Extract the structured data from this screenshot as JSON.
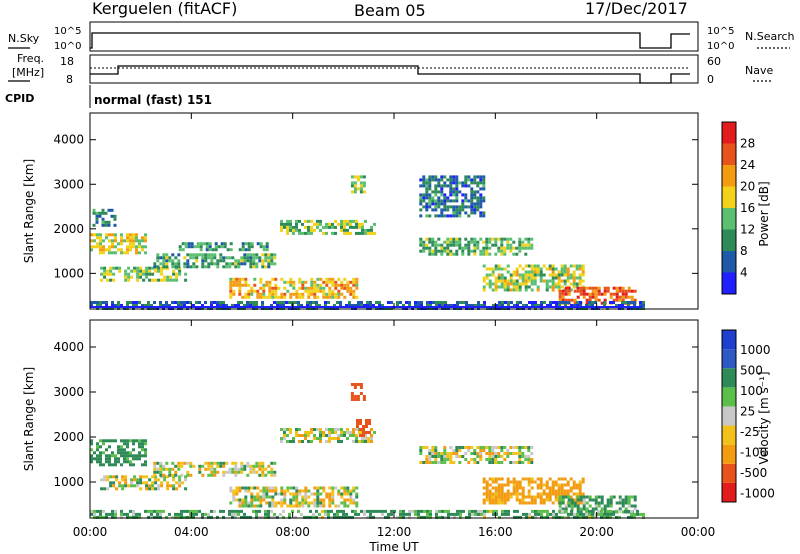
{
  "header": {
    "station": "Kerguelen (fitACF)",
    "beam": "Beam 05",
    "date": "17/Dec/2017"
  },
  "top_panels": {
    "nsky_label": "N.Sky",
    "nsky_ticks": [
      "10^5",
      "10^0"
    ],
    "nsearch_label": "N.Search",
    "nsearch_ticks": [
      "10^5",
      "10^0"
    ],
    "freq_label_1": "Freq.",
    "freq_label_2": "[MHz]",
    "freq_ticks": [
      "18",
      "8"
    ],
    "nave_label": "Nave",
    "nave_ticks": [
      "60",
      "0"
    ],
    "cpid_label": "CPID",
    "mode_text": "normal (fast) 151"
  },
  "colors": {
    "power_scale": [
      "#1f1fff",
      "#1e5aa8",
      "#2e8b57",
      "#5bbf72",
      "#f2d21b",
      "#f39c12",
      "#e8531c",
      "#e21c1c"
    ],
    "velocity_scale": [
      "#1f3fcf",
      "#2e59c4",
      "#2e8b57",
      "#5bbf4a",
      "#c8c8c8",
      "#c8c8c8",
      "#f2c21b",
      "#f39c12",
      "#e8531c",
      "#e21c1c"
    ]
  },
  "chart_data": [
    {
      "type": "heatmap",
      "name": "power",
      "ylabel": "Slant Range [km]",
      "yticks": [
        "1000",
        "2000",
        "3000",
        "4000"
      ],
      "ylim": [
        200,
        4600
      ],
      "xlim": [
        0,
        24
      ],
      "colorbar": {
        "label": "Power [dB]",
        "ticks": [
          "4",
          "8",
          "12",
          "16",
          "20",
          "24",
          "28"
        ],
        "range": [
          0,
          32
        ]
      },
      "echo_regions": [
        {
          "t0": 0.0,
          "t1": 2.2,
          "r0": 1450,
          "r1": 1900,
          "value": 18
        },
        {
          "t0": 0.1,
          "t1": 1.0,
          "r0": 2050,
          "r1": 2450,
          "value": 9
        },
        {
          "t0": 0.4,
          "t1": 3.8,
          "r0": 850,
          "r1": 1150,
          "value": 15
        },
        {
          "t0": 2.5,
          "t1": 7.3,
          "r0": 1150,
          "r1": 1450,
          "value": 12
        },
        {
          "t0": 3.5,
          "t1": 7.0,
          "r0": 1500,
          "r1": 1700,
          "value": 11
        },
        {
          "t0": 5.5,
          "t1": 10.5,
          "r0": 450,
          "r1": 900,
          "value": 20
        },
        {
          "t0": 7.5,
          "t1": 11.2,
          "r0": 1900,
          "r1": 2200,
          "value": 14
        },
        {
          "t0": 10.3,
          "t1": 10.8,
          "r0": 2800,
          "r1": 3200,
          "value": 15
        },
        {
          "t0": 13.0,
          "t1": 15.5,
          "r0": 2300,
          "r1": 3200,
          "value": 8
        },
        {
          "t0": 13.0,
          "t1": 17.5,
          "r0": 1400,
          "r1": 1800,
          "value": 13
        },
        {
          "t0": 15.5,
          "t1": 19.5,
          "r0": 600,
          "r1": 1200,
          "value": 16
        },
        {
          "t0": 18.5,
          "t1": 21.5,
          "r0": 300,
          "r1": 700,
          "value": 26
        },
        {
          "t0": 0.0,
          "t1": 21.8,
          "r0": 180,
          "r1": 380,
          "value": 7
        }
      ]
    },
    {
      "type": "heatmap",
      "name": "velocity",
      "ylabel": "Slant Range [km]",
      "yticks": [
        "1000",
        "2000",
        "3000",
        "4000"
      ],
      "ylim": [
        200,
        4600
      ],
      "xlim": [
        0,
        24
      ],
      "xlabel": "Time UT",
      "xticks": [
        "00:00",
        "04:00",
        "08:00",
        "12:00",
        "16:00",
        "20:00",
        "00:00"
      ],
      "colorbar": {
        "label": "Velocity [m s⁻¹]",
        "ticks": [
          "1000",
          "500",
          "100",
          "25",
          "-25",
          "-100",
          "-500",
          "-1000"
        ]
      },
      "echo_regions": [
        {
          "t0": 0.0,
          "t1": 2.2,
          "r0": 1400,
          "r1": 1950,
          "value": 200
        },
        {
          "t0": 0.4,
          "t1": 3.8,
          "r0": 850,
          "r1": 1150,
          "value": 0
        },
        {
          "t0": 2.5,
          "t1": 7.3,
          "r0": 1150,
          "r1": 1450,
          "value": 0
        },
        {
          "t0": 5.5,
          "t1": 10.5,
          "r0": 450,
          "r1": 900,
          "value": 0
        },
        {
          "t0": 7.5,
          "t1": 11.2,
          "r0": 1900,
          "r1": 2200,
          "value": 0
        },
        {
          "t0": 10.3,
          "t1": 10.8,
          "r0": 2800,
          "r1": 3200,
          "value": -600
        },
        {
          "t0": 10.5,
          "t1": 11.0,
          "r0": 2050,
          "r1": 2400,
          "value": -800
        },
        {
          "t0": 13.0,
          "t1": 17.5,
          "r0": 1400,
          "r1": 1800,
          "value": 0
        },
        {
          "t0": 15.5,
          "t1": 19.5,
          "r0": 500,
          "r1": 1100,
          "value": -200
        },
        {
          "t0": 18.5,
          "t1": 21.5,
          "r0": 300,
          "r1": 700,
          "value": 150
        },
        {
          "t0": 0.0,
          "t1": 21.8,
          "r0": 180,
          "r1": 380,
          "value": 120
        }
      ]
    }
  ]
}
